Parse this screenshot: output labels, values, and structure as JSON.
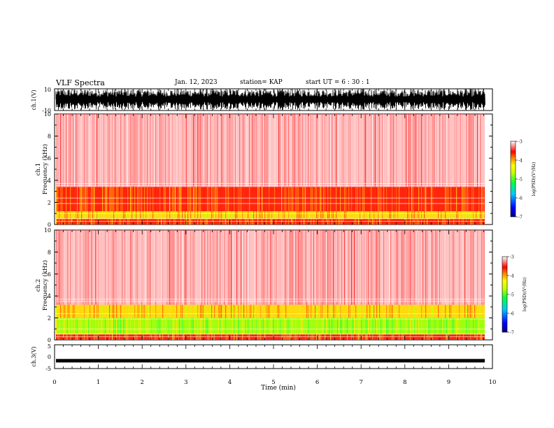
{
  "header": {
    "title": "VLF Spectra",
    "date": "Jan. 12, 2023",
    "station": "station= KAP",
    "start": "start  UT  =   6  : 30 : 1"
  },
  "chart_data": [
    {
      "type": "line",
      "ylabel": "ch.1(V)",
      "ylim": [
        -10,
        10
      ],
      "yticks": [
        "10",
        "-10"
      ],
      "xlim": [
        0,
        10
      ],
      "description_level": "dense waveform filling range"
    },
    {
      "type": "heatmap",
      "ylabel": "ch.1\nFrequency (kHz)",
      "ylabel_lines": [
        "ch.1",
        "Frequency (kHz)"
      ],
      "ylim": [
        0,
        10
      ],
      "yticks": [
        "0",
        "2",
        "4",
        "6",
        "8",
        "10"
      ],
      "xlim": [
        0,
        10
      ],
      "bands": [
        {
          "from": 0,
          "to": 0.5,
          "level": "red-yellow"
        },
        {
          "from": 0.5,
          "to": 1.2,
          "level": "yellow"
        },
        {
          "from": 1.2,
          "to": 3.4,
          "level": "red-yellow"
        },
        {
          "from": 3.4,
          "to": 10,
          "level": "light-red"
        }
      ],
      "colorbar": {
        "label": "log(PSD)(V²/Hz)",
        "ticks": [
          "-3",
          "-4",
          "-5",
          "-6",
          "-7"
        ],
        "range": [
          -7,
          -3
        ]
      }
    },
    {
      "type": "heatmap",
      "ylabel": "ch.2\nFrequency (kHz)",
      "ylabel_lines": [
        "ch.2",
        "Frequency (kHz)"
      ],
      "ylim": [
        0,
        10
      ],
      "yticks": [
        "0",
        "2",
        "4",
        "6",
        "8",
        "10"
      ],
      "xlim": [
        0,
        10
      ],
      "bands": [
        {
          "from": 0,
          "to": 0.5,
          "level": "red-yellow"
        },
        {
          "from": 0.5,
          "to": 2.0,
          "level": "green"
        },
        {
          "from": 2.0,
          "to": 3.2,
          "level": "yellow"
        },
        {
          "from": 3.2,
          "to": 10,
          "level": "light-red"
        }
      ],
      "colorbar": {
        "label": "log(PSD)(V²/Hz)",
        "ticks": [
          "-3",
          "-4",
          "-5",
          "-6",
          "-7"
        ],
        "range": [
          -7,
          -3
        ]
      }
    },
    {
      "type": "line",
      "ylabel": "ch.3(V)",
      "ylim": [
        -5,
        5
      ],
      "yticks": [
        "5",
        "0",
        "-5"
      ],
      "xlim": [
        0,
        10
      ],
      "value": -1.7
    }
  ],
  "xaxis": {
    "label": "Time (min)",
    "ticks": [
      "0",
      "1",
      "2",
      "3",
      "4",
      "5",
      "6",
      "7",
      "8",
      "9",
      "10"
    ],
    "range": [
      0,
      10
    ]
  },
  "colors": {
    "light_red": "#ff5050",
    "red": "#ff0000",
    "yellow": "#ffee00",
    "green": "#60ff00",
    "black": "#000000"
  }
}
